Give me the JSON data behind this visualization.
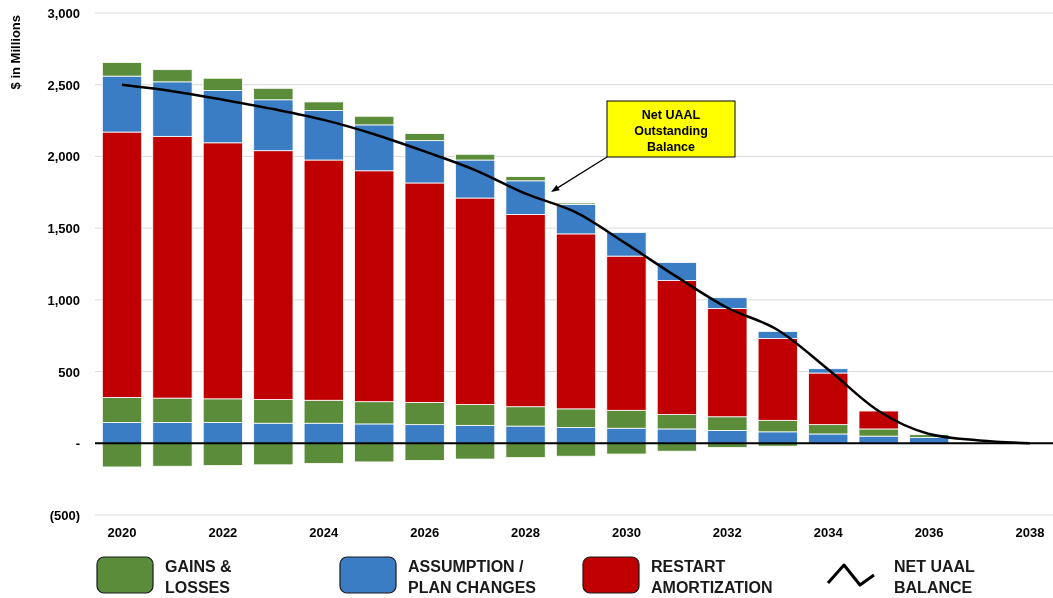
{
  "chart_data": {
    "type": "bar",
    "stacked": true,
    "ylabel": "$ in Millions",
    "categories": [
      "2020",
      null,
      "2022",
      null,
      "2024",
      null,
      "2026",
      null,
      "2028",
      null,
      "2030",
      null,
      "2032",
      null,
      "2034",
      null,
      "2036",
      null,
      "2038"
    ],
    "ylim": [
      -500,
      3000
    ],
    "yticks": [
      {
        "value": -500,
        "label": "(500)"
      },
      {
        "value": 0,
        "label": "-"
      },
      {
        "value": 500,
        "label": "500"
      },
      {
        "value": 1000,
        "label": "1,000"
      },
      {
        "value": 1500,
        "label": "1,500"
      },
      {
        "value": 2000,
        "label": "2,000"
      },
      {
        "value": 2500,
        "label": "2,500"
      },
      {
        "value": 3000,
        "label": "3,000"
      }
    ],
    "grid": "y",
    "legend": "bottom",
    "series": [
      {
        "name": "GAINS & LOSSES",
        "color": "#5b8c3a",
        "values": [
          -165,
          -160,
          -155,
          -150,
          -140,
          -130,
          -120,
          -110,
          -100,
          -90,
          -75,
          -55,
          -30,
          -20,
          null,
          null,
          null,
          null,
          null
        ]
      },
      {
        "name": "ASSUMPTION / PLAN CHANGES",
        "color": "#3b7dc4",
        "values": [
          145,
          145,
          145,
          140,
          140,
          135,
          130,
          125,
          120,
          110,
          105,
          100,
          90,
          80,
          65,
          50,
          40,
          null,
          null
        ]
      },
      {
        "color": "#5b8c3a",
        "values": [
          175,
          170,
          165,
          165,
          160,
          155,
          155,
          145,
          135,
          130,
          125,
          100,
          95,
          80,
          65,
          50,
          20,
          null,
          null
        ]
      },
      {
        "name": "RESTART AMORTIZATION",
        "color": "#c00000",
        "values": [
          1850,
          1825,
          1785,
          1735,
          1675,
          1610,
          1530,
          1440,
          1340,
          1220,
          1075,
          935,
          755,
          570,
          360,
          125,
          null,
          null,
          null
        ]
      },
      {
        "color": "#3b7dc4",
        "values": [
          390,
          380,
          365,
          355,
          345,
          320,
          295,
          265,
          235,
          205,
          165,
          125,
          75,
          50,
          30,
          null,
          null,
          null,
          null
        ]
      },
      {
        "color": "#5b8c3a",
        "values": [
          95,
          85,
          85,
          80,
          60,
          60,
          50,
          40,
          30,
          10,
          null,
          null,
          null,
          null,
          null,
          null,
          null,
          null,
          null
        ]
      },
      {
        "name": "NET UAAL BALANCE",
        "type": "line",
        "color": "#000000",
        "values": [
          2500,
          2455,
          2395,
          2330,
          2255,
          2155,
          2035,
          1905,
          1740,
          1610,
          1390,
          1160,
          945,
          790,
          515,
          225,
          65,
          20,
          0
        ]
      }
    ],
    "annotations": [
      "Net UAAL Outstanding Balance"
    ]
  }
}
